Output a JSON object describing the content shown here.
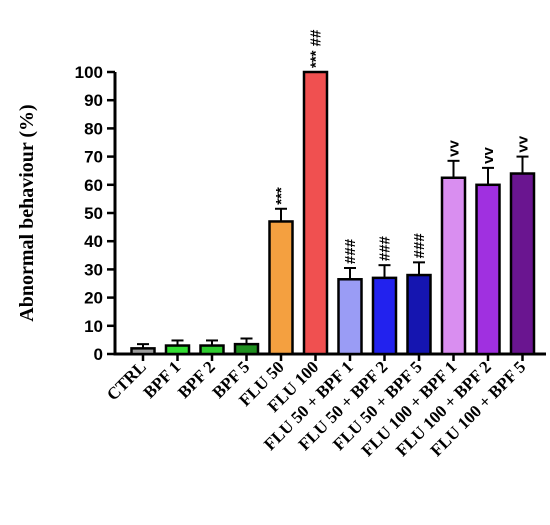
{
  "chart_data": {
    "type": "bar",
    "ylabel": "Abnormal behaviour  (%)",
    "xlabel": "",
    "title": "",
    "ylim": [
      0,
      100
    ],
    "yticks": [
      0,
      10,
      20,
      30,
      40,
      50,
      60,
      70,
      80,
      90,
      100
    ],
    "grid": false,
    "legend": "none",
    "categories": [
      "CTRL",
      "BPF 1",
      "BPF 2",
      "BPF 5",
      "FLU 50",
      "FLU 100",
      "FLU 50 + BPF 1",
      "FLU 50 + BPF 2",
      "FLU 50 + BPF 5",
      "FLU 100 + BPF 1",
      "FLU 100 + BPF 2",
      "FLU 100 + BPF 5"
    ],
    "values": [
      2,
      3,
      3,
      3.5,
      47,
      100,
      26.5,
      27,
      28,
      62.5,
      60,
      64
    ],
    "errors": [
      1.5,
      1.8,
      1.8,
      2,
      4.5,
      0,
      4,
      4.5,
      4.5,
      6,
      6,
      6
    ],
    "colors": [
      "#9e9e9e",
      "#33dd33",
      "#2fcb2f",
      "#1f8f1f",
      "#f4a040",
      "#f05050",
      "#9a9cf5",
      "#2222ee",
      "#1515b0",
      "#d98ef0",
      "#a030e0",
      "#6a1590"
    ],
    "annotations": [
      "",
      "",
      "",
      "",
      "***",
      "*** ##",
      "###",
      "###",
      "###",
      "vv",
      "vv",
      "vv"
    ]
  }
}
